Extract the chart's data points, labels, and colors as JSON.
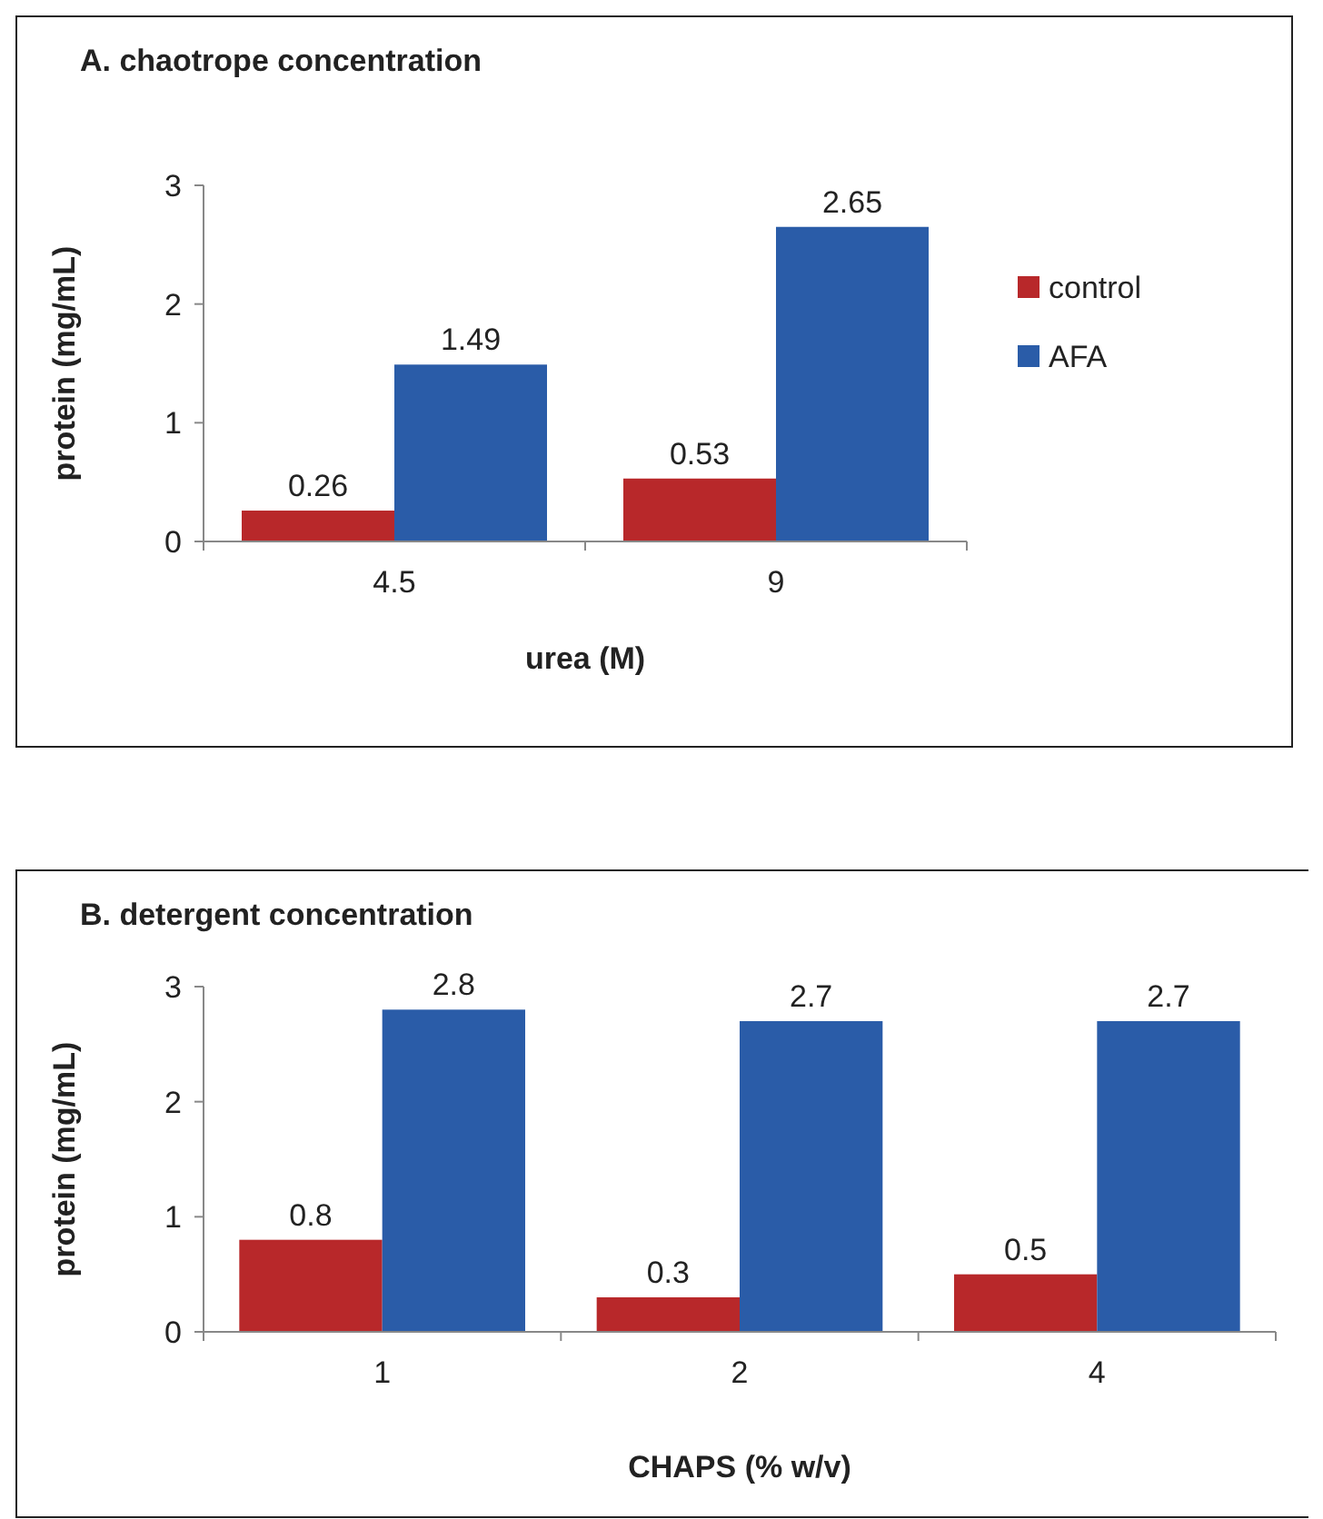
{
  "chart_data": [
    {
      "type": "bar",
      "title": "A.  chaotrope concentration",
      "xlabel": "urea (M)",
      "ylabel": "protein (mg/mL)",
      "categories": [
        "4.5",
        "9"
      ],
      "series": [
        {
          "name": "control",
          "color": "#b8282a",
          "values": [
            0.26,
            0.53
          ]
        },
        {
          "name": "AFA",
          "color": "#2a5ca8",
          "values": [
            1.49,
            2.65
          ]
        }
      ],
      "ylim": [
        0,
        3
      ],
      "yticks": [
        0,
        1,
        2,
        3
      ],
      "data_labels": true,
      "legend": "right",
      "grid": false
    },
    {
      "type": "bar",
      "title": "B.  detergent concentration",
      "xlabel": "CHAPS (% w/v)",
      "ylabel": "protein (mg/mL)",
      "categories": [
        "1",
        "2",
        "4"
      ],
      "series": [
        {
          "color": "#b8282a",
          "values": [
            0.8,
            0.3,
            0.5
          ]
        },
        {
          "color": "#2a5ca8",
          "values": [
            2.8,
            2.7,
            2.7
          ]
        }
      ],
      "ylim": [
        0,
        3
      ],
      "yticks": [
        0,
        1,
        2,
        3
      ],
      "data_labels": true,
      "legend": false,
      "grid": false
    }
  ]
}
